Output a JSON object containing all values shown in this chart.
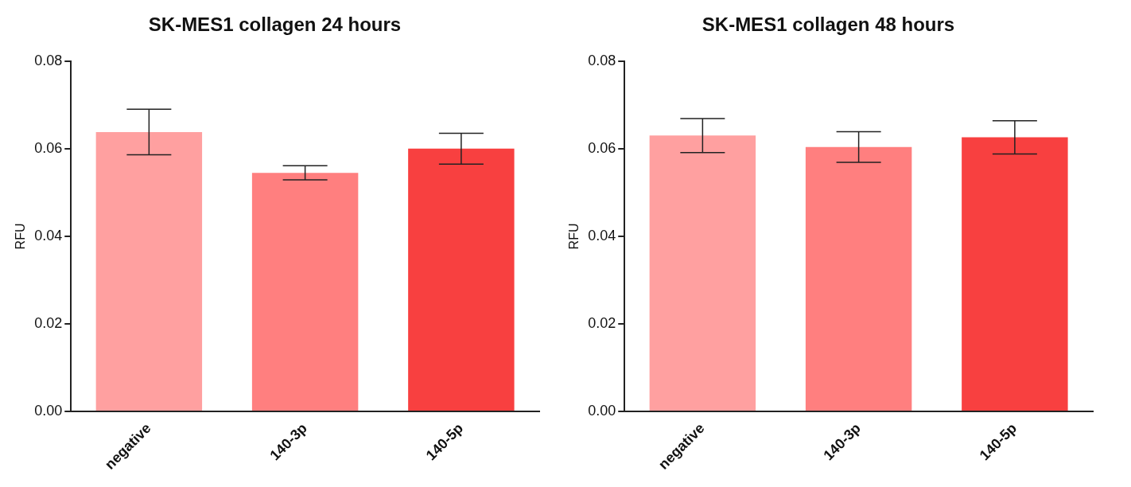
{
  "chart_data": [
    {
      "type": "bar",
      "title": "SK-MES1 collagen 24 hours",
      "ylabel": "RFU",
      "categories": [
        "negative",
        "140-3p",
        "140-5p"
      ],
      "values": [
        0.0638,
        0.0545,
        0.06
      ],
      "colors": [
        "#ffa0a0",
        "#ff7f7f",
        "#f84040"
      ],
      "errors": [
        0.0052,
        0.0016,
        0.0035
      ],
      "ylim": [
        0,
        0.08
      ],
      "yticks": [
        {
          "value": 0,
          "label": "0.00"
        },
        {
          "value": 0.02,
          "label": "0.02"
        },
        {
          "value": 0.04,
          "label": "0.04"
        },
        {
          "value": 0.06,
          "label": "0.06"
        },
        {
          "value": 0.08,
          "label": "0.08"
        }
      ],
      "grid": false,
      "legend": false
    },
    {
      "type": "bar",
      "title": "SK-MES1 collagen 48 hours",
      "ylabel": "RFU",
      "categories": [
        "negative",
        "140-3p",
        "140-5p"
      ],
      "values": [
        0.063,
        0.0604,
        0.0626
      ],
      "colors": [
        "#ffa0a0",
        "#ff7f7f",
        "#f84040"
      ],
      "errors": [
        0.0039,
        0.0035,
        0.0038
      ],
      "ylim": [
        0,
        0.08
      ],
      "yticks": [
        {
          "value": 0,
          "label": "0.00"
        },
        {
          "value": 0.02,
          "label": "0.02"
        },
        {
          "value": 0.04,
          "label": "0.04"
        },
        {
          "value": 0.06,
          "label": "0.06"
        },
        {
          "value": 0.08,
          "label": "0.08"
        }
      ],
      "grid": false,
      "legend": false
    }
  ]
}
